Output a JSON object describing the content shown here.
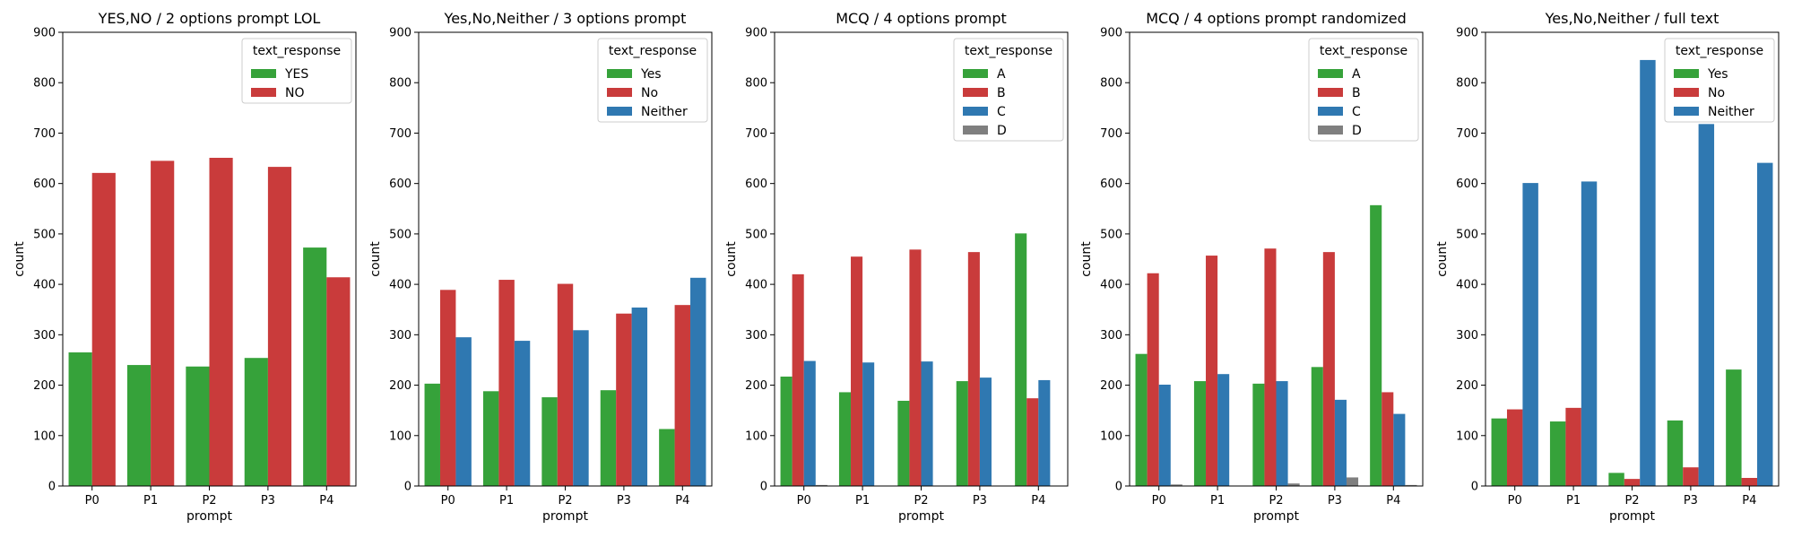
{
  "chart_data": [
    {
      "type": "bar",
      "title": "YES,NO / 2 options prompt LOL",
      "xlabel": "prompt",
      "ylabel": "count",
      "categories": [
        "P0",
        "P1",
        "P2",
        "P3",
        "P4"
      ],
      "ylim": [
        0,
        900
      ],
      "yticks": [
        0,
        100,
        200,
        300,
        400,
        500,
        600,
        700,
        800,
        900
      ],
      "legend": {
        "title": "text_response",
        "placement": "top-right"
      },
      "series": [
        {
          "name": "YES",
          "color": "#36a23a",
          "values": [
            265,
            240,
            237,
            254,
            473
          ]
        },
        {
          "name": "NO",
          "color": "#c93b3b",
          "values": [
            621,
            645,
            651,
            633,
            414
          ]
        }
      ]
    },
    {
      "type": "bar",
      "title": "Yes,No,Neither / 3 options prompt",
      "xlabel": "prompt",
      "ylabel": "count",
      "categories": [
        "P0",
        "P1",
        "P2",
        "P3",
        "P4"
      ],
      "ylim": [
        0,
        900
      ],
      "yticks": [
        0,
        100,
        200,
        300,
        400,
        500,
        600,
        700,
        800,
        900
      ],
      "legend": {
        "title": "text_response",
        "placement": "top-right"
      },
      "series": [
        {
          "name": "Yes",
          "color": "#36a23a",
          "values": [
            203,
            188,
            176,
            190,
            113
          ]
        },
        {
          "name": "No",
          "color": "#c93b3b",
          "values": [
            389,
            409,
            401,
            342,
            359
          ]
        },
        {
          "name": "Neither",
          "color": "#2f78b1",
          "values": [
            295,
            288,
            309,
            354,
            413
          ]
        }
      ]
    },
    {
      "type": "bar",
      "title": "MCQ / 4 options prompt",
      "xlabel": "prompt",
      "ylabel": "count",
      "categories": [
        "P0",
        "P1",
        "P2",
        "P3",
        "P4"
      ],
      "ylim": [
        0,
        900
      ],
      "yticks": [
        0,
        100,
        200,
        300,
        400,
        500,
        600,
        700,
        800,
        900
      ],
      "legend": {
        "title": "text_response",
        "placement": "top-right"
      },
      "series": [
        {
          "name": "A",
          "color": "#36a23a",
          "values": [
            217,
            186,
            169,
            208,
            501
          ]
        },
        {
          "name": "B",
          "color": "#c93b3b",
          "values": [
            420,
            455,
            469,
            464,
            174
          ]
        },
        {
          "name": "C",
          "color": "#2f78b1",
          "values": [
            248,
            245,
            247,
            215,
            210
          ]
        },
        {
          "name": "D",
          "color": "#7f7f7f",
          "values": [
            2,
            0,
            0,
            0,
            0
          ]
        }
      ]
    },
    {
      "type": "bar",
      "title": "MCQ / 4 options prompt randomized",
      "xlabel": "prompt",
      "ylabel": "count",
      "categories": [
        "P0",
        "P1",
        "P2",
        "P3",
        "P4"
      ],
      "ylim": [
        0,
        900
      ],
      "yticks": [
        0,
        100,
        200,
        300,
        400,
        500,
        600,
        700,
        800,
        900
      ],
      "legend": {
        "title": "text_response",
        "placement": "top-right"
      },
      "series": [
        {
          "name": "A",
          "color": "#36a23a",
          "values": [
            262,
            208,
            203,
            236,
            557
          ]
        },
        {
          "name": "B",
          "color": "#c93b3b",
          "values": [
            422,
            457,
            471,
            464,
            186
          ]
        },
        {
          "name": "C",
          "color": "#2f78b1",
          "values": [
            201,
            222,
            208,
            171,
            143
          ]
        },
        {
          "name": "D",
          "color": "#7f7f7f",
          "values": [
            3,
            0,
            5,
            17,
            2
          ]
        }
      ]
    },
    {
      "type": "bar",
      "title": "Yes,No,Neither / full text",
      "xlabel": "prompt",
      "ylabel": "count",
      "categories": [
        "P0",
        "P1",
        "P2",
        "P3",
        "P4"
      ],
      "ylim": [
        0,
        900
      ],
      "yticks": [
        0,
        100,
        200,
        300,
        400,
        500,
        600,
        700,
        800,
        900
      ],
      "legend": {
        "title": "text_response",
        "placement": "top-right"
      },
      "series": [
        {
          "name": "Yes",
          "color": "#36a23a",
          "values": [
            134,
            128,
            26,
            130,
            231
          ]
        },
        {
          "name": "No",
          "color": "#c93b3b",
          "values": [
            152,
            155,
            14,
            37,
            16
          ]
        },
        {
          "name": "Neither",
          "color": "#2f78b1",
          "values": [
            601,
            604,
            845,
            718,
            641
          ]
        }
      ]
    }
  ]
}
